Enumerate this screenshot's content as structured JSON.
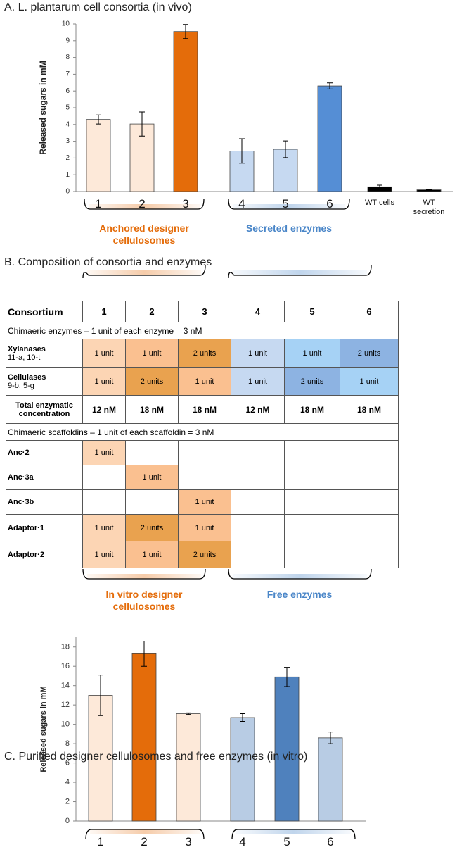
{
  "chart_data": [
    {
      "type": "bar",
      "title": "A. L. plantarum cell consortia (in vivo)",
      "y_label": "Released sugars in mM",
      "categories": [
        "1",
        "2",
        "3",
        "4",
        "5",
        "6",
        "WT cells",
        "WT secretion"
      ],
      "values": [
        4.3,
        4.03,
        9.55,
        2.42,
        2.52,
        6.3,
        0.28,
        0.1
      ],
      "errors": [
        0.27,
        0.72,
        0.42,
        0.73,
        0.5,
        0.18,
        0.1,
        0.02
      ],
      "colors": [
        "#fde9d9",
        "#fde9d9",
        "#e46c0a",
        "#c6d9f1",
        "#c6d9f1",
        "#558ed5",
        "#000000",
        "#000000"
      ],
      "ylim": [
        0,
        10
      ],
      "yticks": [
        0,
        1,
        2,
        3,
        4,
        5,
        6,
        7,
        8,
        9,
        10
      ],
      "groups": [
        {
          "label": "Anchored designer cellulosomes",
          "color": "#e46c0a"
        },
        {
          "label": "Secreted enzymes",
          "color": "#4a86c8"
        }
      ]
    },
    {
      "type": "bar",
      "title": "C. Purified designer cellulosomes and free enzymes (in vitro)",
      "y_label": "Released sugars in mM",
      "categories": [
        "1",
        "2",
        "3",
        "4",
        "5",
        "6"
      ],
      "values": [
        13.0,
        17.3,
        11.1,
        10.7,
        14.9,
        8.6
      ],
      "errors": [
        2.1,
        1.3,
        0.08,
        0.4,
        1.0,
        0.6
      ],
      "colors": [
        "#fde9d9",
        "#e46c0a",
        "#fde9d9",
        "#b8cce4",
        "#4f81bd",
        "#b8cce4"
      ],
      "ylim": [
        0,
        19
      ],
      "yticks": [
        0,
        2,
        4,
        6,
        8,
        10,
        12,
        14,
        16,
        18
      ]
    }
  ],
  "composition": {
    "title": "B. Composition of consortia and enzymes",
    "header": [
      "Consortium",
      "1",
      "2",
      "3",
      "4",
      "5",
      "6"
    ],
    "sections": [
      {
        "title": "Chimaeric enzymes – 1 unit of each enzyme = 3 nM",
        "rows": [
          {
            "label": "Xylanases",
            "sublabel": "11-a, 10-t",
            "cells": [
              "1 unit",
              "1 unit",
              "2 units",
              "1 unit",
              "1 unit",
              "2 units"
            ],
            "fills": [
              "#fcd5b4",
              "#fac090",
              "#e9a24f",
              "#c6d9f1",
              "#a6d2f5",
              "#8db3e2"
            ]
          },
          {
            "label": "Cellulases",
            "sublabel": "9-b, 5-g",
            "cells": [
              "1 unit",
              "2 units",
              "1 unit",
              "1 unit",
              "2 units",
              "1 unit"
            ],
            "fills": [
              "#fcd5b4",
              "#e9a24f",
              "#fac090",
              "#c6d9f1",
              "#8db3e2",
              "#a6d2f5"
            ]
          },
          {
            "label": "Total enzymatic concentration",
            "cells": [
              "12 nM",
              "18 nM",
              "18 nM",
              "12 nM",
              "18 nM",
              "18 nM"
            ],
            "fills": [
              null,
              null,
              null,
              null,
              null,
              null
            ]
          }
        ]
      },
      {
        "title": "Chimaeric scaffoldins – 1 unit of each scaffoldin = 3 nM",
        "rows": [
          {
            "label": "Anc·2",
            "cells": [
              "1 unit",
              null,
              null,
              null,
              null,
              null
            ],
            "fills": [
              "#fcd5b4",
              null,
              null,
              null,
              null,
              null
            ]
          },
          {
            "label": "Anc·3a",
            "cells": [
              null,
              "1 unit",
              null,
              null,
              null,
              null
            ],
            "fills": [
              null,
              "#fac090",
              null,
              null,
              null,
              null
            ]
          },
          {
            "label": "Anc·3b",
            "cells": [
              null,
              null,
              "1 unit",
              null,
              null,
              null
            ],
            "fills": [
              null,
              null,
              "#fac090",
              null,
              null,
              null
            ]
          },
          {
            "label": "Adaptor·1",
            "cells": [
              "1 unit",
              "2 units",
              "1 unit",
              null,
              null,
              null
            ],
            "fills": [
              "#fcd5b4",
              "#e9a24f",
              "#fac090",
              null,
              null,
              null
            ]
          },
          {
            "label": "Adaptor·2",
            "cells": [
              "1 unit",
              "1 unit",
              "2 units",
              null,
              null,
              null
            ],
            "fills": [
              "#fcd5b4",
              "#fac090",
              "#e9a24f",
              null,
              null,
              null
            ]
          }
        ]
      }
    ],
    "groups": [
      {
        "label": "In vitro designer cellulosomes",
        "color": "#e46c0a"
      },
      {
        "label": "Free enzymes",
        "color": "#4a86c8"
      }
    ]
  }
}
